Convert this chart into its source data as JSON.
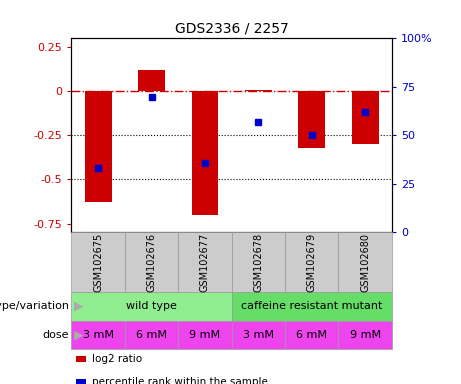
{
  "title": "GDS2336 / 2257",
  "samples": [
    "GSM102675",
    "GSM102676",
    "GSM102677",
    "GSM102678",
    "GSM102679",
    "GSM102680"
  ],
  "log2_ratio": [
    -0.63,
    0.12,
    -0.7,
    0.01,
    -0.32,
    -0.3
  ],
  "percentile_rank": [
    33,
    70,
    36,
    57,
    50,
    62
  ],
  "bar_color": "#cc0000",
  "dot_color": "#0000cc",
  "ylim_left": [
    -0.8,
    0.3
  ],
  "ylim_right": [
    0,
    100
  ],
  "dotted_lines": [
    -0.25,
    -0.5
  ],
  "right_ticks": [
    0,
    25,
    50,
    75,
    100
  ],
  "right_tick_labels": [
    "0",
    "25",
    "50",
    "75",
    "100%"
  ],
  "left_ticks": [
    -0.75,
    -0.5,
    -0.25,
    0,
    0.25
  ],
  "genotype_groups": [
    {
      "label": "wild type",
      "start": 0,
      "end": 3,
      "color": "#90ee90"
    },
    {
      "label": "caffeine resistant mutant",
      "start": 3,
      "end": 6,
      "color": "#66dd66"
    }
  ],
  "dose_labels": [
    "3 mM",
    "6 mM",
    "9 mM",
    "3 mM",
    "6 mM",
    "9 mM"
  ],
  "genotype_label": "genotype/variation",
  "dose_label": "dose",
  "legend_items": [
    {
      "color": "#cc0000",
      "label": "log2 ratio"
    },
    {
      "color": "#0000cc",
      "label": "percentile rank within the sample"
    }
  ],
  "bar_width": 0.5,
  "sample_bg_color": "#cccccc",
  "dose_color": "#ee44ee",
  "arrow_color": "#aaaaaa",
  "title_fontsize": 10,
  "tick_fontsize": 8,
  "label_fontsize": 8,
  "sample_fontsize": 7
}
